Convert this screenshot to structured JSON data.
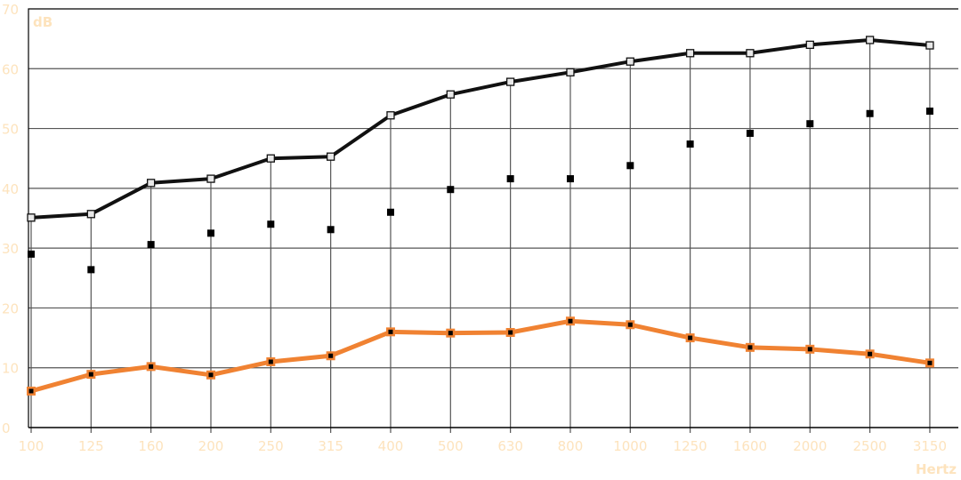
{
  "chart_data": {
    "type": "line",
    "ylabel": "dB",
    "xlabel": "Hertz",
    "ylim": [
      0,
      70
    ],
    "yticks": [
      0,
      10,
      20,
      30,
      40,
      50,
      60,
      70
    ],
    "categories": [
      "100",
      "125",
      "160",
      "200",
      "250",
      "315",
      "400",
      "500",
      "630",
      "800",
      "1000",
      "1250",
      "1600",
      "2000",
      "2500",
      "3150"
    ],
    "grid": true,
    "series": [
      {
        "style": "line-open-square",
        "color": "#111111",
        "values": [
          35.1,
          35.7,
          40.9,
          41.6,
          45.0,
          45.3,
          52.2,
          55.7,
          57.8,
          59.4,
          61.2,
          62.6,
          62.6,
          64.0,
          64.8,
          63.9
        ]
      },
      {
        "style": "markers-only",
        "color": "#000000",
        "values": [
          29.0,
          26.4,
          30.6,
          32.5,
          34.0,
          33.1,
          36.0,
          39.8,
          41.6,
          41.6,
          43.8,
          47.4,
          49.2,
          50.8,
          52.5,
          52.9
        ]
      },
      {
        "style": "line-filled-square",
        "color": "#f08232",
        "values": [
          6.1,
          8.9,
          10.2,
          8.8,
          11.0,
          12.0,
          16.0,
          15.8,
          15.9,
          17.8,
          17.2,
          15.0,
          13.4,
          13.1,
          12.3,
          10.8
        ]
      }
    ]
  }
}
